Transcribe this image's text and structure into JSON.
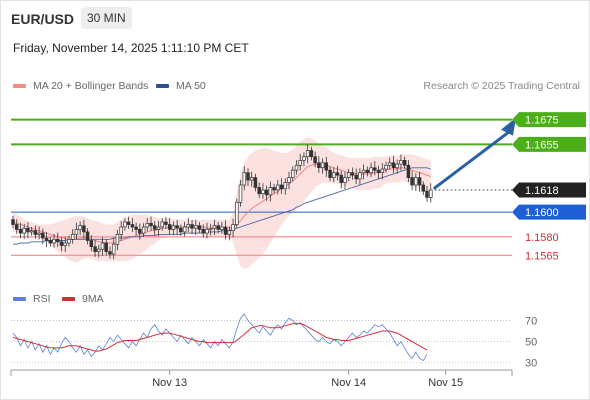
{
  "header": {
    "symbol": "EUR/USD",
    "timeframe": "30 MIN",
    "datetime": "Friday, November 14, 2025 1:11:10 PM CET"
  },
  "legend": {
    "ma20": {
      "label": "MA 20 + Bollinger Bands",
      "color": "#f28b82"
    },
    "ma50": {
      "label": "MA 50",
      "color": "#2c4f8c"
    },
    "credit": "Research © 2025 Trading Central"
  },
  "rsi_legend": {
    "rsi": {
      "label": "RSI",
      "color": "#5b7fdb"
    },
    "ma9": {
      "label": "9MA",
      "color": "#d32f2f"
    }
  },
  "chart_data": [
    {
      "type": "candlestick",
      "ylim": [
        1.1545,
        1.1695
      ],
      "x_ticks": [
        {
          "label": "Nov 13",
          "index": 42
        },
        {
          "label": "Nov 14",
          "index": 90
        },
        {
          "label": "Nov 15",
          "index": 116
        }
      ],
      "levels": [
        {
          "value": 1.1675,
          "label": "1.1675",
          "kind": "resistance",
          "color": "#4caf1a"
        },
        {
          "value": 1.1655,
          "label": "1.1655",
          "kind": "resistance",
          "color": "#4caf1a"
        },
        {
          "value": 1.1618,
          "label": "1.1618",
          "kind": "last",
          "color": "#222222"
        },
        {
          "value": 1.16,
          "label": "1.1600",
          "kind": "pivot",
          "color": "#1f5fd6"
        },
        {
          "value": 1.158,
          "label": "1.1580",
          "kind": "support",
          "color": "#d32f2f"
        },
        {
          "value": 1.1565,
          "label": "1.1565",
          "kind": "support",
          "color": "#d32f2f"
        }
      ],
      "arrow": {
        "from": 1.1618,
        "to": 1.1675,
        "direction": "up",
        "color": "#2c5fa0"
      },
      "closes": [
        1.159,
        1.1586,
        1.1583,
        1.1587,
        1.1584,
        1.1585,
        1.1582,
        1.1583,
        1.1579,
        1.1577,
        1.1575,
        1.1578,
        1.1576,
        1.1573,
        1.1575,
        1.1578,
        1.1582,
        1.1586,
        1.1589,
        1.1584,
        1.1577,
        1.1572,
        1.1568,
        1.157,
        1.1575,
        1.1568,
        1.1566,
        1.1574,
        1.1582,
        1.1588,
        1.1592,
        1.159,
        1.1588,
        1.1586,
        1.1583,
        1.1588,
        1.1591,
        1.1589,
        1.1586,
        1.1588,
        1.1592,
        1.159,
        1.1586,
        1.1589,
        1.1587,
        1.1584,
        1.1588,
        1.159,
        1.1587,
        1.1589,
        1.1586,
        1.1583,
        1.1586,
        1.1587,
        1.1589,
        1.1586,
        1.1588,
        1.1582,
        1.1585,
        1.159,
        1.1608,
        1.1622,
        1.1632,
        1.1626,
        1.1628,
        1.162,
        1.1615,
        1.1618,
        1.1614,
        1.162,
        1.1618,
        1.1622,
        1.1619,
        1.1624,
        1.1628,
        1.1634,
        1.1638,
        1.1642,
        1.1645,
        1.165,
        1.1645,
        1.164,
        1.1636,
        1.164,
        1.1634,
        1.1628,
        1.1632,
        1.163,
        1.1624,
        1.1628,
        1.1632,
        1.163,
        1.1627,
        1.1632,
        1.1634,
        1.1632,
        1.1636,
        1.1634,
        1.1632,
        1.1635,
        1.1638,
        1.164,
        1.1636,
        1.1639,
        1.1642,
        1.1638,
        1.1628,
        1.1622,
        1.1628,
        1.1622,
        1.1617,
        1.1612,
        1.1618
      ],
      "ma20": [
        1.1592,
        1.1591,
        1.159,
        1.1589,
        1.1588,
        1.1587,
        1.1586,
        1.1585,
        1.1584,
        1.1583,
        1.1582,
        1.1581,
        1.158,
        1.1579,
        1.1579,
        1.1578,
        1.1578,
        1.1578,
        1.1579,
        1.1579,
        1.1579,
        1.1578,
        1.1577,
        1.1576,
        1.1576,
        1.1575,
        1.1575,
        1.1575,
        1.1576,
        1.1577,
        1.1578,
        1.1579,
        1.158,
        1.1581,
        1.1582,
        1.1583,
        1.1584,
        1.1585,
        1.1585,
        1.1586,
        1.1587,
        1.1587,
        1.1588,
        1.1588,
        1.1588,
        1.1588,
        1.1588,
        1.1588,
        1.1588,
        1.1588,
        1.1588,
        1.1588,
        1.1587,
        1.1587,
        1.1587,
        1.1587,
        1.1587,
        1.1587,
        1.1587,
        1.1588,
        1.159,
        1.1593,
        1.1597,
        1.16,
        1.1603,
        1.1605,
        1.1607,
        1.1609,
        1.1611,
        1.1613,
        1.1615,
        1.1617,
        1.1619,
        1.1621,
        1.1623,
        1.1625,
        1.1628,
        1.1631,
        1.1634,
        1.1637,
        1.1638,
        1.1639,
        1.1639,
        1.1639,
        1.1638,
        1.1637,
        1.1636,
        1.1635,
        1.1634,
        1.1633,
        1.1632,
        1.1632,
        1.1631,
        1.1631,
        1.1631,
        1.1631,
        1.1631,
        1.1632,
        1.1632,
        1.1633,
        1.1634,
        1.1635,
        1.1635,
        1.1635,
        1.1636,
        1.1636,
        1.1635,
        1.1634,
        1.1633,
        1.1632,
        1.1631,
        1.163,
        1.1629
      ],
      "bb_upper": [
        1.16,
        1.1598,
        1.1596,
        1.1594,
        1.1593,
        1.1592,
        1.1591,
        1.159,
        1.159,
        1.159,
        1.159,
        1.1591,
        1.1592,
        1.1593,
        1.1594,
        1.1595,
        1.1596,
        1.1597,
        1.1597,
        1.1596,
        1.1595,
        1.1594,
        1.1593,
        1.1592,
        1.1591,
        1.159,
        1.159,
        1.159,
        1.1592,
        1.1594,
        1.1596,
        1.1597,
        1.1598,
        1.1598,
        1.1598,
        1.1598,
        1.1598,
        1.1597,
        1.1596,
        1.1595,
        1.1595,
        1.1595,
        1.1595,
        1.1594,
        1.1594,
        1.1594,
        1.1594,
        1.1594,
        1.1594,
        1.1594,
        1.1594,
        1.1594,
        1.1594,
        1.1594,
        1.1594,
        1.1594,
        1.1594,
        1.1594,
        1.1594,
        1.16,
        1.1615,
        1.163,
        1.164,
        1.1645,
        1.1648,
        1.165,
        1.1651,
        1.1652,
        1.1652,
        1.1651,
        1.165,
        1.1649,
        1.1648,
        1.1648,
        1.1649,
        1.1651,
        1.1654,
        1.1657,
        1.1659,
        1.1661,
        1.166,
        1.1658,
        1.1656,
        1.1654,
        1.1652,
        1.165,
        1.1648,
        1.1647,
        1.1646,
        1.1645,
        1.1644,
        1.1644,
        1.1644,
        1.1644,
        1.1644,
        1.1644,
        1.1644,
        1.1645,
        1.1645,
        1.1645,
        1.1645,
        1.1646,
        1.1646,
        1.1646,
        1.1647,
        1.1647,
        1.1647,
        1.1647,
        1.1646,
        1.1645,
        1.1644,
        1.1643,
        1.1642
      ],
      "bb_lower": [
        1.1584,
        1.1584,
        1.1584,
        1.1584,
        1.1583,
        1.1582,
        1.1581,
        1.158,
        1.1578,
        1.1576,
        1.1574,
        1.1571,
        1.1568,
        1.1565,
        1.1564,
        1.1561,
        1.156,
        1.1559,
        1.1561,
        1.1562,
        1.1563,
        1.1562,
        1.1561,
        1.156,
        1.1561,
        1.156,
        1.156,
        1.156,
        1.156,
        1.156,
        1.156,
        1.1561,
        1.1562,
        1.1564,
        1.1566,
        1.1568,
        1.157,
        1.1573,
        1.1574,
        1.1577,
        1.1579,
        1.1579,
        1.1581,
        1.1582,
        1.1582,
        1.1582,
        1.1582,
        1.1582,
        1.1582,
        1.1582,
        1.1582,
        1.1582,
        1.158,
        1.158,
        1.158,
        1.158,
        1.158,
        1.158,
        1.158,
        1.1576,
        1.1565,
        1.1556,
        1.1554,
        1.1555,
        1.1558,
        1.156,
        1.1563,
        1.1566,
        1.157,
        1.1575,
        1.158,
        1.1585,
        1.159,
        1.1594,
        1.1597,
        1.1599,
        1.1602,
        1.1605,
        1.1609,
        1.1613,
        1.1616,
        1.162,
        1.1622,
        1.1624,
        1.1624,
        1.1624,
        1.1624,
        1.1623,
        1.1622,
        1.1621,
        1.162,
        1.162,
        1.1618,
        1.1618,
        1.1618,
        1.1618,
        1.1618,
        1.1619,
        1.1619,
        1.1621,
        1.1623,
        1.1624,
        1.1624,
        1.1624,
        1.1625,
        1.1625,
        1.1623,
        1.1621,
        1.162,
        1.1619,
        1.1618,
        1.1617,
        1.1616
      ],
      "ma50": [
        1.1574,
        1.1574,
        1.1575,
        1.1575,
        1.1575,
        1.1576,
        1.1576,
        1.1576,
        1.1576,
        1.1577,
        1.1577,
        1.1577,
        1.1577,
        1.1577,
        1.1577,
        1.1578,
        1.1578,
        1.1578,
        1.1578,
        1.1578,
        1.1578,
        1.1578,
        1.1578,
        1.1578,
        1.1578,
        1.1578,
        1.1578,
        1.1579,
        1.1579,
        1.1579,
        1.1579,
        1.158,
        1.158,
        1.158,
        1.158,
        1.1581,
        1.1581,
        1.1581,
        1.1581,
        1.1582,
        1.1582,
        1.1582,
        1.1582,
        1.1582,
        1.1582,
        1.1582,
        1.1583,
        1.1583,
        1.1583,
        1.1583,
        1.1583,
        1.1583,
        1.1584,
        1.1584,
        1.1584,
        1.1584,
        1.1585,
        1.1585,
        1.1585,
        1.1586,
        1.1587,
        1.1588,
        1.1589,
        1.159,
        1.1591,
        1.1592,
        1.1593,
        1.1594,
        1.1595,
        1.1596,
        1.1597,
        1.1598,
        1.1599,
        1.16,
        1.1601,
        1.1602,
        1.1604,
        1.1605,
        1.1607,
        1.1608,
        1.1609,
        1.161,
        1.1611,
        1.1612,
        1.1613,
        1.1614,
        1.1615,
        1.1616,
        1.1617,
        1.1618,
        1.1619,
        1.162,
        1.1621,
        1.1622,
        1.1623,
        1.1624,
        1.1625,
        1.1626,
        1.1627,
        1.1628,
        1.1629,
        1.163,
        1.1631,
        1.1632,
        1.1633,
        1.1634,
        1.1635,
        1.1636,
        1.1636,
        1.1636,
        1.1636,
        1.1636,
        1.1635
      ]
    },
    {
      "type": "line",
      "ylim": [
        25,
        78
      ],
      "y_ticks": [
        {
          "value": 70,
          "label": "70"
        },
        {
          "value": 50,
          "label": "50"
        },
        {
          "value": 30,
          "label": "30"
        }
      ],
      "series": [
        {
          "name": "RSI",
          "color": "#5b7fdb",
          "values": [
            58,
            54,
            46,
            52,
            44,
            50,
            42,
            48,
            40,
            46,
            38,
            44,
            40,
            48,
            54,
            50,
            44,
            40,
            46,
            38,
            42,
            36,
            40,
            46,
            42,
            48,
            54,
            50,
            56,
            52,
            48,
            44,
            50,
            46,
            52,
            58,
            54,
            62,
            66,
            60,
            56,
            62,
            58,
            54,
            50,
            56,
            52,
            48,
            54,
            50,
            46,
            52,
            48,
            44,
            50,
            46,
            52,
            48,
            44,
            50,
            62,
            72,
            76,
            70,
            66,
            62,
            58,
            64,
            60,
            56,
            62,
            66,
            62,
            68,
            72,
            70,
            66,
            68,
            64,
            60,
            56,
            52,
            50,
            54,
            50,
            48,
            52,
            50,
            46,
            50,
            54,
            58,
            54,
            56,
            60,
            58,
            62,
            66,
            64,
            66,
            62,
            58,
            52,
            46,
            50,
            44,
            38,
            34,
            40,
            34,
            32,
            38
          ]
        },
        {
          "name": "9MA",
          "color": "#d32f2f",
          "values": [
            54,
            53,
            52,
            51,
            50,
            49,
            48,
            47,
            46,
            45,
            44,
            44,
            44,
            44,
            45,
            46,
            46,
            46,
            45,
            44,
            43,
            42,
            41,
            41,
            42,
            43,
            45,
            47,
            49,
            50,
            51,
            51,
            51,
            51,
            52,
            53,
            54,
            55,
            56,
            57,
            58,
            58,
            58,
            57,
            56,
            55,
            54,
            53,
            52,
            51,
            50,
            50,
            49,
            49,
            49,
            49,
            49,
            49,
            49,
            49,
            51,
            54,
            57,
            60,
            63,
            64,
            65,
            65,
            64,
            63,
            63,
            63,
            64,
            65,
            66,
            67,
            67,
            67,
            66,
            64,
            62,
            60,
            58,
            56,
            54,
            53,
            52,
            52,
            51,
            51,
            51,
            52,
            53,
            54,
            55,
            56,
            57,
            58,
            59,
            60,
            60,
            60,
            59,
            58,
            56,
            54,
            52,
            50,
            48,
            46,
            44,
            42
          ]
        }
      ]
    }
  ]
}
